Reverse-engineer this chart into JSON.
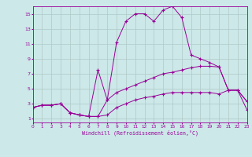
{
  "xlabel": "Windchill (Refroidissement éolien,°C)",
  "background_color": "#cce8e8",
  "grid_color": "#b0c8c8",
  "line_color": "#990099",
  "xlim": [
    0,
    23
  ],
  "ylim": [
    0.5,
    16
  ],
  "xticks": [
    0,
    1,
    2,
    3,
    4,
    5,
    6,
    7,
    8,
    9,
    10,
    11,
    12,
    13,
    14,
    15,
    16,
    17,
    18,
    19,
    20,
    21,
    22,
    23
  ],
  "yticks": [
    1,
    3,
    5,
    7,
    9,
    11,
    13,
    15
  ],
  "line1_x": [
    0,
    1,
    2,
    3,
    4,
    5,
    6,
    7,
    8,
    9,
    10,
    11,
    12,
    13,
    14,
    15,
    16,
    17,
    18,
    19,
    20,
    21,
    22,
    23
  ],
  "line1_y": [
    2.5,
    2.8,
    2.8,
    3.0,
    1.8,
    1.5,
    1.3,
    7.5,
    3.5,
    11.2,
    14.0,
    15.0,
    15.0,
    14.0,
    15.5,
    16.0,
    14.5,
    9.5,
    9.0,
    8.5,
    7.9,
    4.8,
    4.8,
    3.3
  ],
  "line2_x": [
    0,
    1,
    2,
    3,
    4,
    5,
    6,
    7,
    8,
    9,
    10,
    11,
    12,
    13,
    14,
    15,
    16,
    17,
    18,
    19,
    20,
    21,
    22,
    23
  ],
  "line2_y": [
    2.5,
    2.8,
    2.8,
    3.0,
    1.8,
    1.5,
    1.3,
    1.3,
    3.5,
    4.5,
    5.0,
    5.5,
    6.0,
    6.5,
    7.0,
    7.2,
    7.5,
    7.8,
    8.0,
    8.0,
    7.9,
    4.8,
    4.8,
    3.3
  ],
  "line3_x": [
    0,
    1,
    2,
    3,
    4,
    5,
    6,
    7,
    8,
    9,
    10,
    11,
    12,
    13,
    14,
    15,
    16,
    17,
    18,
    19,
    20,
    21,
    22,
    23
  ],
  "line3_y": [
    2.5,
    2.8,
    2.8,
    3.0,
    1.8,
    1.5,
    1.3,
    1.3,
    1.5,
    2.5,
    3.0,
    3.5,
    3.8,
    4.0,
    4.3,
    4.5,
    4.5,
    4.5,
    4.5,
    4.5,
    4.3,
    4.8,
    4.8,
    2.2
  ]
}
